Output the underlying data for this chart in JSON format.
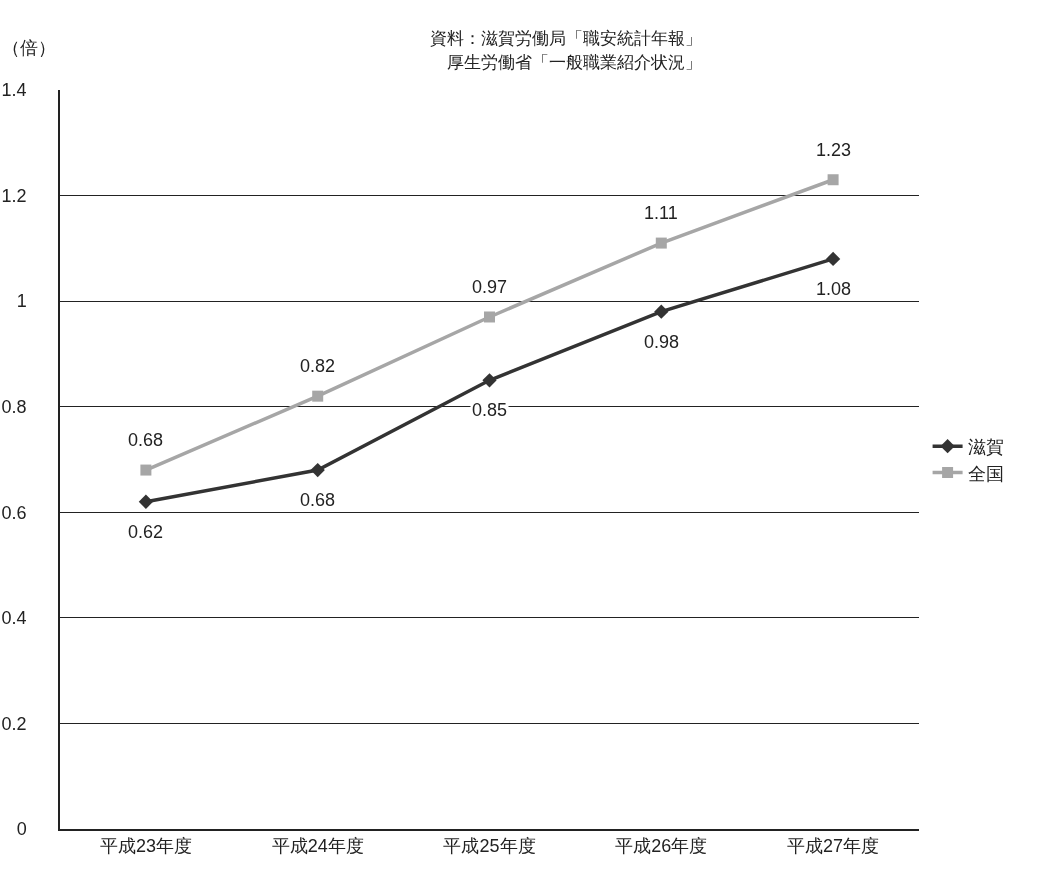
{
  "chart_data": {
    "type": "line",
    "ylabel": "（倍）",
    "annotations": [
      "資料：滋賀労働局「職安統計年報」",
      "厚生労働省「一般職業紹介状況」"
    ],
    "categories": [
      "平成23年度",
      "平成24年度",
      "平成25年度",
      "平成26年度",
      "平成27年度"
    ],
    "series": [
      {
        "name": "滋賀",
        "color": "#333333",
        "marker": "diamond",
        "values": [
          0.62,
          0.68,
          0.85,
          0.98,
          1.08
        ]
      },
      {
        "name": "全国",
        "color": "#a6a6a6",
        "marker": "square",
        "values": [
          0.68,
          0.82,
          0.97,
          1.11,
          1.23
        ]
      }
    ],
    "ylim": [
      0,
      1.4
    ],
    "yticks": [
      0,
      {
        "value": 0.2,
        "label": "0.2"
      },
      {
        "value": 0.4,
        "label": "0.4"
      },
      {
        "value": 0.6,
        "label": "0.6"
      },
      {
        "value": 0.8,
        "label": "0.8"
      },
      1,
      {
        "value": 1.2,
        "label": "1.2"
      },
      {
        "value": 1.4,
        "label": "1.4"
      }
    ],
    "grid": "y",
    "legend": "right",
    "data_labels": true,
    "line_style": "solid"
  }
}
